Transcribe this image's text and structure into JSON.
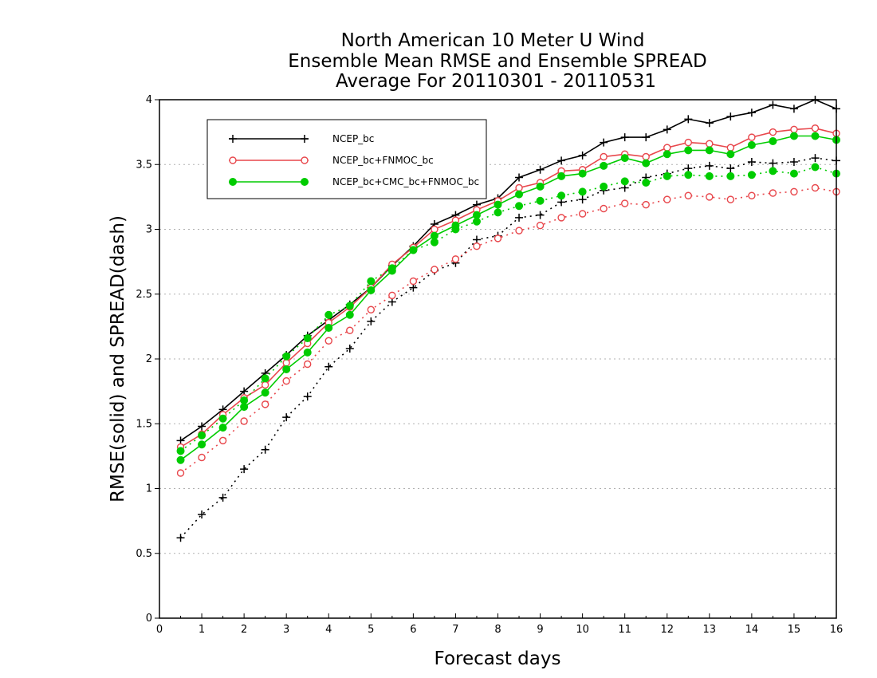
{
  "chart_data": {
    "type": "line",
    "title": [
      "North American 10 Meter U Wind",
      "Ensemble Mean RMSE and Ensemble SPREAD",
      "Average For 20110301 - 20110531"
    ],
    "xlabel": "Forecast days",
    "ylabel": "RMSE(solid) and SPREAD(dash)",
    "xlim": [
      0,
      16
    ],
    "ylim": [
      0,
      4
    ],
    "xticks": [
      0,
      1,
      2,
      3,
      4,
      5,
      6,
      7,
      8,
      9,
      10,
      11,
      12,
      13,
      14,
      15,
      16
    ],
    "yticks": [
      0,
      0.5,
      1,
      1.5,
      2,
      2.5,
      3,
      3.5,
      4
    ],
    "grid": "horizontal dotted",
    "legend_position": "top-left",
    "x": [
      0.5,
      1,
      1.5,
      2,
      2.5,
      3,
      3.5,
      4,
      4.5,
      5,
      5.5,
      6,
      6.5,
      7,
      7.5,
      8,
      8.5,
      9,
      9.5,
      10,
      10.5,
      11,
      11.5,
      12,
      12.5,
      13,
      13.5,
      14,
      14.5,
      15,
      15.5,
      16
    ],
    "series": [
      {
        "name": "NCEP_bc",
        "metric": "RMSE",
        "style": "solid",
        "marker": "plus",
        "color": "#000000",
        "values": [
          1.37,
          1.48,
          1.61,
          1.75,
          1.89,
          2.03,
          2.18,
          2.3,
          2.42,
          2.55,
          2.72,
          2.87,
          3.04,
          3.11,
          3.19,
          3.24,
          3.4,
          3.46,
          3.53,
          3.57,
          3.67,
          3.71,
          3.71,
          3.77,
          3.85,
          3.82,
          3.87,
          3.9,
          3.96,
          3.93,
          4.0,
          3.93
        ]
      },
      {
        "name": "NCEP_bc+FNMOC_bc",
        "metric": "RMSE",
        "style": "solid",
        "marker": "open-circle",
        "color": "#e8474c",
        "values": [
          1.32,
          1.42,
          1.57,
          1.7,
          1.8,
          1.97,
          2.12,
          2.28,
          2.4,
          2.55,
          2.73,
          2.86,
          3.0,
          3.07,
          3.15,
          3.22,
          3.32,
          3.36,
          3.45,
          3.46,
          3.56,
          3.58,
          3.56,
          3.63,
          3.67,
          3.66,
          3.63,
          3.71,
          3.75,
          3.77,
          3.78,
          3.74
        ]
      },
      {
        "name": "NCEP_bc+CMC_bc+FNMOC_bc",
        "metric": "RMSE",
        "style": "solid",
        "marker": "filled-circle",
        "color": "#00cc00",
        "values": [
          1.22,
          1.34,
          1.47,
          1.63,
          1.74,
          1.92,
          2.05,
          2.24,
          2.34,
          2.53,
          2.68,
          2.84,
          2.95,
          3.03,
          3.11,
          3.19,
          3.27,
          3.33,
          3.41,
          3.43,
          3.49,
          3.55,
          3.51,
          3.58,
          3.61,
          3.61,
          3.58,
          3.65,
          3.68,
          3.72,
          3.72,
          3.69
        ]
      },
      {
        "name": "NCEP_bc",
        "metric": "SPREAD",
        "style": "dotted",
        "marker": "plus",
        "color": "#000000",
        "values": [
          0.62,
          0.8,
          0.93,
          1.15,
          1.3,
          1.55,
          1.71,
          1.94,
          2.08,
          2.29,
          2.44,
          2.55,
          2.68,
          2.74,
          2.92,
          2.95,
          3.09,
          3.11,
          3.21,
          3.23,
          3.3,
          3.32,
          3.4,
          3.43,
          3.47,
          3.49,
          3.47,
          3.52,
          3.51,
          3.52,
          3.55,
          3.53
        ]
      },
      {
        "name": "NCEP_bc+FNMOC_bc",
        "metric": "SPREAD",
        "style": "dotted",
        "marker": "open-circle",
        "color": "#e8474c",
        "values": [
          1.12,
          1.24,
          1.37,
          1.52,
          1.65,
          1.83,
          1.96,
          2.14,
          2.22,
          2.38,
          2.49,
          2.6,
          2.69,
          2.77,
          2.87,
          2.93,
          2.99,
          3.03,
          3.09,
          3.12,
          3.16,
          3.2,
          3.19,
          3.23,
          3.26,
          3.25,
          3.23,
          3.26,
          3.28,
          3.29,
          3.32,
          3.29
        ]
      },
      {
        "name": "NCEP_bc+CMC_bc+FNMOC_bc",
        "metric": "SPREAD",
        "style": "dotted",
        "marker": "filled-circle",
        "color": "#00cc00",
        "values": [
          1.29,
          1.41,
          1.54,
          1.68,
          1.85,
          2.02,
          2.16,
          2.34,
          2.41,
          2.6,
          2.7,
          2.84,
          2.9,
          3.0,
          3.06,
          3.13,
          3.18,
          3.22,
          3.26,
          3.29,
          3.33,
          3.37,
          3.36,
          3.41,
          3.42,
          3.41,
          3.41,
          3.42,
          3.45,
          3.43,
          3.48,
          3.43
        ]
      }
    ],
    "legend": [
      {
        "label": "NCEP_bc",
        "marker": "plus",
        "color": "#000000"
      },
      {
        "label": "NCEP_bc+FNMOC_bc",
        "marker": "open-circle",
        "color": "#e8474c"
      },
      {
        "label": "NCEP_bc+CMC_bc+FNMOC_bc",
        "marker": "filled-circle",
        "color": "#00cc00"
      }
    ]
  }
}
